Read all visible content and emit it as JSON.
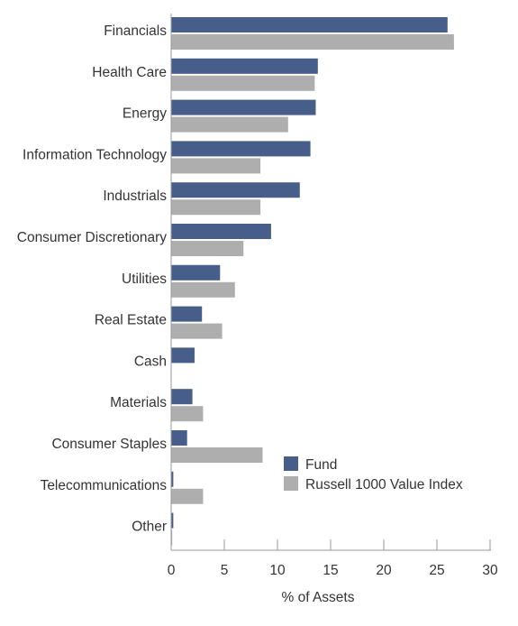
{
  "chart_data": {
    "type": "bar",
    "orientation": "horizontal",
    "categories": [
      "Financials",
      "Health Care",
      "Energy",
      "Information Technology",
      "Industrials",
      "Consumer Discretionary",
      "Utilities",
      "Real Estate",
      "Cash",
      "Materials",
      "Consumer Staples",
      "Telecommunications",
      "Other"
    ],
    "series": [
      {
        "name": "Fund",
        "color": "#475e8a",
        "values": [
          26.0,
          13.8,
          13.6,
          13.1,
          12.1,
          9.4,
          4.6,
          2.9,
          2.2,
          2.0,
          1.5,
          0.2,
          0.2
        ]
      },
      {
        "name": "Russell 1000 Value Index",
        "color": "#aeaeae",
        "values": [
          26.6,
          13.5,
          11.0,
          8.4,
          8.4,
          6.8,
          6.0,
          4.8,
          0.0,
          3.0,
          8.6,
          3.0,
          0.1
        ]
      }
    ],
    "xlabel": "% of Assets",
    "xlim": [
      0,
      30
    ],
    "xticks": [
      "0",
      "5",
      "10",
      "15",
      "20",
      "25",
      "30"
    ],
    "grid": false,
    "legend_position": "lower-right"
  }
}
